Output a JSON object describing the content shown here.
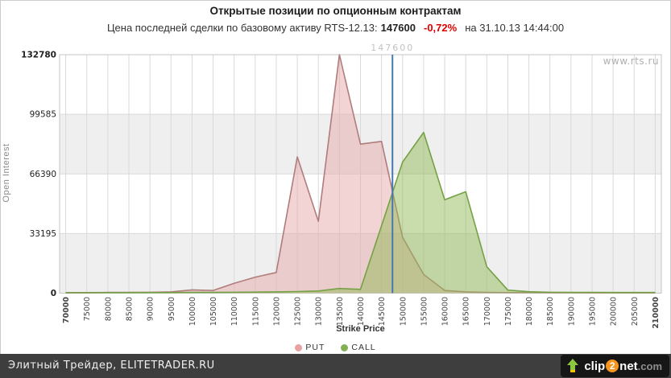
{
  "header": {
    "title": "Открытые позиции по опционным контрактам",
    "subtitle_prefix": "Цена последней сделки по базовому активу RTS-12.13:",
    "last_price": "147600",
    "change": "-0,72%",
    "change_color": "#e30000",
    "subtitle_suffix": "на 31.10.13 14:44:00"
  },
  "watermark": "www.rts.ru",
  "chart_data": {
    "type": "area",
    "title": "Открытые позиции по опционным контрактам",
    "xlabel": "Strike Price",
    "ylabel": "Open Interest",
    "x": [
      70000,
      75000,
      80000,
      85000,
      90000,
      95000,
      100000,
      105000,
      110000,
      115000,
      120000,
      125000,
      130000,
      135000,
      140000,
      145000,
      150000,
      155000,
      160000,
      165000,
      170000,
      175000,
      180000,
      185000,
      190000,
      195000,
      200000,
      205000,
      210000
    ],
    "yticks": [
      0,
      33195,
      66390,
      99585,
      132780
    ],
    "ylim": [
      0,
      132780
    ],
    "grid": true,
    "legend_position": "bottom",
    "series": [
      {
        "name": "PUT",
        "fill": "#e5a9a9",
        "fill_opacity": 0.5,
        "line": "#b07c7c",
        "dot": "#e8a2a2",
        "values": [
          300,
          300,
          400,
          400,
          500,
          700,
          1800,
          1500,
          5500,
          8900,
          11500,
          75900,
          40000,
          132780,
          83000,
          84500,
          31100,
          10400,
          1500,
          700,
          400,
          300,
          300,
          250,
          250,
          200,
          200,
          200,
          200
        ]
      },
      {
        "name": "CALL",
        "fill": "#93b957",
        "fill_opacity": 0.5,
        "line": "#74a144",
        "dot": "#84b055",
        "values": [
          200,
          200,
          250,
          250,
          300,
          300,
          400,
          400,
          500,
          600,
          700,
          900,
          1200,
          2600,
          2100,
          37500,
          73000,
          89500,
          52000,
          56500,
          14700,
          1700,
          800,
          500,
          400,
          400,
          350,
          350,
          350
        ]
      }
    ],
    "annotation": {
      "label": "147600",
      "value": 147600,
      "color": "#4677b0"
    },
    "style": {
      "band": "#efefef",
      "grid": "#d9d9d9",
      "border": "#c6c6c6",
      "y_tick_color": "#222",
      "x_tick_color": "#444",
      "annotation_text": "#c2c2c2",
      "watermark_color": "#b0b0b0"
    }
  },
  "footer": {
    "text": "Элитный Трейдер, ELITETRADER.RU",
    "logo": {
      "clip": "clip",
      "two": "2",
      "net": "net",
      "com": ".com",
      "orange": "#f7941e",
      "arrow_green": "#8dc63f"
    }
  }
}
